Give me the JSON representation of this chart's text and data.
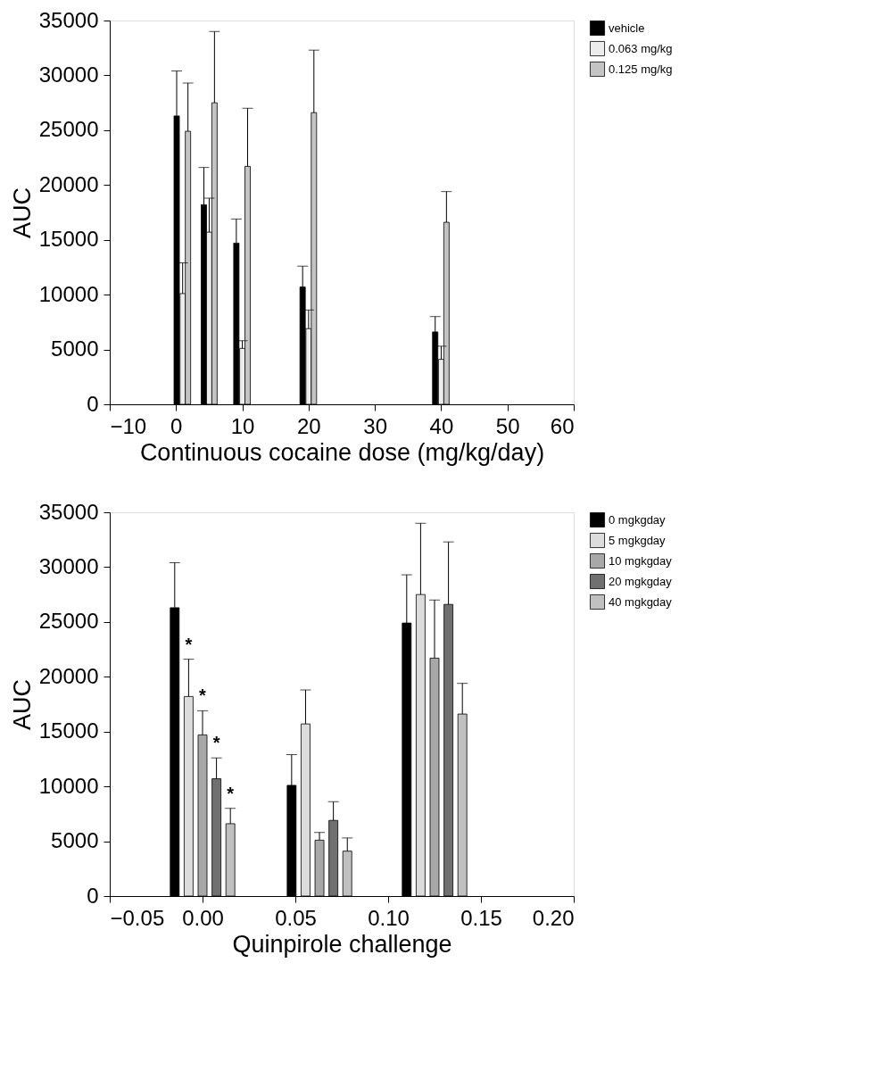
{
  "chart_data": [
    {
      "type": "bar",
      "xlabel": "Continuous cocaine dose (mg/kg/day)",
      "ylabel": "AUC",
      "xlim": [
        -10,
        60
      ],
      "xticks": [
        -10,
        0,
        10,
        20,
        30,
        40,
        50,
        60
      ],
      "ylim": [
        0,
        35000
      ],
      "yticks": [
        0,
        5000,
        10000,
        15000,
        20000,
        25000,
        30000,
        35000
      ],
      "legend": "right",
      "series": [
        {
          "name": "vehicle",
          "color": "#000000",
          "x": [
            0.1,
            4.2,
            9.1,
            19.1,
            39.1
          ],
          "values": [
            26300,
            18200,
            14700,
            10700,
            6600
          ],
          "errors": [
            [
              26300,
              30400
            ],
            [
              18200,
              21600
            ],
            [
              14700,
              16900
            ],
            [
              10700,
              12600
            ],
            [
              6600,
              8000
            ]
          ]
        },
        {
          "name": "0.063 mg/kg",
          "color": "#ececec",
          "x": [
            1,
            5,
            10,
            20,
            40
          ],
          "values": [
            10100,
            15700,
            5100,
            6900,
            4100
          ],
          "errors": [
            [
              10100,
              12900
            ],
            [
              15700,
              18800
            ],
            [
              5100,
              5800
            ],
            [
              6900,
              8600
            ],
            [
              4100,
              5300
            ]
          ]
        },
        {
          "name": "0.125 mg/kg",
          "color": "#c4c4c4",
          "x": [
            1.8,
            5.8,
            10.8,
            20.8,
            40.8
          ],
          "values": [
            24900,
            27500,
            21700,
            26600,
            16600
          ],
          "errors": [
            [
              24900,
              29300
            ],
            [
              27500,
              34000
            ],
            [
              21700,
              27000
            ],
            [
              26600,
              32300
            ],
            [
              16600,
              19400
            ]
          ]
        }
      ]
    },
    {
      "type": "bar",
      "xlabel": "Quinpirole challenge",
      "ylabel": "AUC",
      "xlim": [
        -0.05,
        0.2
      ],
      "xticks": [
        -0.05,
        {
          "value": 0,
          "label": "0.00"
        },
        0.05,
        {
          "value": 0.1,
          "label": "0.10"
        },
        0.15,
        {
          "value": 0.2,
          "label": "0.20"
        }
      ],
      "ylim": [
        0,
        35000
      ],
      "yticks": [
        0,
        5000,
        10000,
        15000,
        20000,
        25000,
        30000,
        35000
      ],
      "legend": "right",
      "series": [
        {
          "name": "0 mgkgday",
          "color": "#000000",
          "x": [
            -0.015,
            0.048,
            0.11
          ],
          "values": [
            26300,
            10100,
            24900
          ],
          "errors": [
            [
              26300,
              30400
            ],
            [
              10100,
              12900
            ],
            [
              24900,
              29300
            ]
          ]
        },
        {
          "name": "5 mgkgday",
          "color": "#dcdcdc",
          "x": [
            -0.0075,
            0.0555,
            0.1175
          ],
          "values": [
            18200,
            15700,
            27500
          ],
          "errors": [
            [
              18200,
              21600
            ],
            [
              15700,
              18800
            ],
            [
              27500,
              34000
            ]
          ]
        },
        {
          "name": "10 mgkgday",
          "color": "#a8a8a8",
          "x": [
            0,
            0.063,
            0.125
          ],
          "values": [
            14700,
            5100,
            21700
          ],
          "errors": [
            [
              14700,
              16900
            ],
            [
              5100,
              5800
            ],
            [
              21700,
              27000
            ]
          ]
        },
        {
          "name": "20 mgkgday",
          "color": "#707070",
          "x": [
            0.0075,
            0.0705,
            0.1325
          ],
          "values": [
            10700,
            6900,
            26600
          ],
          "errors": [
            [
              10700,
              12600
            ],
            [
              6900,
              8600
            ],
            [
              26600,
              32300
            ]
          ]
        },
        {
          "name": "40 mgkgday",
          "color": "#c0c0c0",
          "x": [
            0.015,
            0.078,
            0.14
          ],
          "values": [
            6600,
            4100,
            16600
          ],
          "errors": [
            [
              6600,
              8000
            ],
            [
              4100,
              5300
            ],
            [
              16600,
              19400
            ]
          ]
        }
      ],
      "annotations": [
        {
          "text": "*",
          "x": -0.0075,
          "y": 21600
        },
        {
          "text": "*",
          "x": 0,
          "y": 16900
        },
        {
          "text": "*",
          "x": 0.0075,
          "y": 12600
        },
        {
          "text": "*",
          "x": 0.015,
          "y": 8000
        }
      ]
    }
  ]
}
